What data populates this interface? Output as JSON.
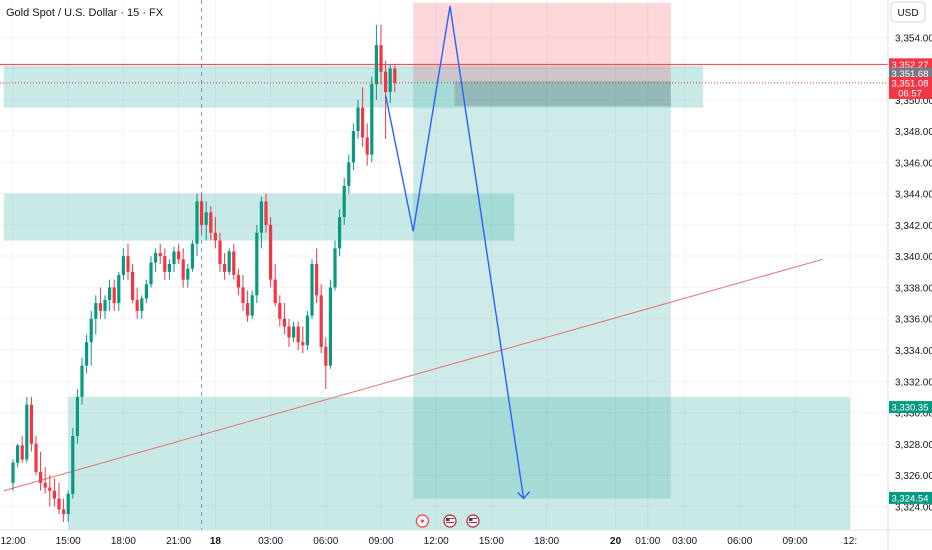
{
  "header": {
    "title": "Gold Spot / U.S. Dollar · 15 · FX"
  },
  "currency_button": "USD",
  "colors": {
    "up": "#089981",
    "down": "#f23645",
    "zone": "#26a69a",
    "target_zone": "#26a69a",
    "stop_zone": "#f23645",
    "path": "#2962ff",
    "trendline": "#e57373",
    "hline": "#f23645",
    "axis_text": "#131722",
    "grid": "#f0f3fa"
  },
  "chart_data": {
    "type": "candlestick",
    "title": "Gold Spot / U.S. Dollar · 15 · FX",
    "y_range": [
      3323.0,
      3356.0
    ],
    "y_ticks": [
      3324,
      3326,
      3328,
      3330,
      3332,
      3334,
      3336,
      3338,
      3340,
      3342,
      3344,
      3346,
      3348,
      3350,
      3352,
      3354
    ],
    "y_tick_labels": [
      "3,324.00",
      "3,326.00",
      "3,328.00",
      "3,330.00",
      "3,332.00",
      "3,334.00",
      "3,336.00",
      "3,338.00",
      "3,340.00",
      "3,342.00",
      "3,344.00",
      "3,346.00",
      "3,348.00",
      "3,350.00",
      "3,352.00",
      "3,354.00"
    ],
    "x_ticks": [
      {
        "label": "12:00",
        "bar": 0
      },
      {
        "label": "15:00",
        "bar": 12
      },
      {
        "label": "18:00",
        "bar": 24
      },
      {
        "label": "21:00",
        "bar": 36
      },
      {
        "label": "18",
        "bar": 44,
        "bold": true
      },
      {
        "label": "03:00",
        "bar": 56
      },
      {
        "label": "06:00",
        "bar": 68
      },
      {
        "label": "09:00",
        "bar": 80
      },
      {
        "label": "12:00",
        "bar": 92
      },
      {
        "label": "15:00",
        "bar": 104
      },
      {
        "label": "18:00",
        "bar": 116
      },
      {
        "label": "20",
        "bar": 131,
        "bold": true
      },
      {
        "label": "01:00",
        "bar": 138
      },
      {
        "label": "03:00",
        "bar": 146
      },
      {
        "label": "06:00",
        "bar": 158
      },
      {
        "label": "09:00",
        "bar": 170
      },
      {
        "label": "12:",
        "bar": 182
      }
    ],
    "candles": [
      [
        3325.5,
        3327.0,
        3325.0,
        3326.8
      ],
      [
        3326.8,
        3328.0,
        3326.5,
        3327.9
      ],
      [
        3327.9,
        3328.5,
        3326.8,
        3327.0
      ],
      [
        3327.0,
        3331.0,
        3326.8,
        3330.5
      ],
      [
        3330.5,
        3331.0,
        3327.5,
        3328.0
      ],
      [
        3328.0,
        3328.5,
        3326.0,
        3326.2
      ],
      [
        3326.2,
        3327.5,
        3325.0,
        3325.5
      ],
      [
        3325.5,
        3326.5,
        3324.8,
        3325.2
      ],
      [
        3325.2,
        3326.0,
        3324.0,
        3325.0
      ],
      [
        3325.0,
        3325.8,
        3324.0,
        3324.5
      ],
      [
        3324.5,
        3325.5,
        3323.5,
        3323.8
      ],
      [
        3323.8,
        3324.5,
        3323.0,
        3323.5
      ],
      [
        3323.5,
        3325.0,
        3323.0,
        3324.8
      ],
      [
        3324.8,
        3329.0,
        3324.5,
        3328.5
      ],
      [
        3328.5,
        3331.5,
        3328.0,
        3331.0
      ],
      [
        3331.0,
        3333.5,
        3330.5,
        3333.0
      ],
      [
        3333.0,
        3335.0,
        3332.5,
        3334.5
      ],
      [
        3334.5,
        3336.5,
        3333.0,
        3336.0
      ],
      [
        3336.0,
        3337.5,
        3335.0,
        3337.0
      ],
      [
        3337.0,
        3338.0,
        3336.0,
        3336.5
      ],
      [
        3336.5,
        3337.5,
        3336.0,
        3337.2
      ],
      [
        3337.2,
        3338.5,
        3336.5,
        3338.0
      ],
      [
        3338.0,
        3338.5,
        3336.5,
        3337.0
      ],
      [
        3337.0,
        3339.0,
        3336.5,
        3338.8
      ],
      [
        3338.8,
        3340.5,
        3338.5,
        3340.0
      ],
      [
        3340.0,
        3340.8,
        3338.5,
        3339.0
      ],
      [
        3339.0,
        3339.5,
        3337.0,
        3337.2
      ],
      [
        3337.2,
        3338.0,
        3336.0,
        3336.5
      ],
      [
        3336.5,
        3337.5,
        3336.0,
        3337.3
      ],
      [
        3337.3,
        3338.5,
        3337.0,
        3338.2
      ],
      [
        3338.2,
        3340.0,
        3338.0,
        3339.6
      ],
      [
        3339.6,
        3340.5,
        3339.0,
        3340.2
      ],
      [
        3340.2,
        3340.8,
        3339.5,
        3340.0
      ],
      [
        3340.0,
        3340.5,
        3338.5,
        3339.0
      ],
      [
        3339.0,
        3339.8,
        3338.5,
        3339.5
      ],
      [
        3339.5,
        3340.6,
        3339.0,
        3340.3
      ],
      [
        3340.3,
        3340.8,
        3339.5,
        3339.8
      ],
      [
        3339.8,
        3340.5,
        3338.0,
        3338.5
      ],
      [
        3338.5,
        3339.5,
        3338.0,
        3339.2
      ],
      [
        3339.2,
        3341.0,
        3339.0,
        3340.8
      ],
      [
        3340.8,
        3344.0,
        3340.0,
        3343.5
      ],
      [
        3343.5,
        3344.0,
        3341.5,
        3342.0
      ],
      [
        3342.0,
        3343.5,
        3341.0,
        3342.8
      ],
      [
        3342.8,
        3343.2,
        3341.0,
        3341.5
      ],
      [
        3341.5,
        3342.5,
        3340.5,
        3341.0
      ],
      [
        3341.0,
        3341.5,
        3339.0,
        3339.5
      ],
      [
        3339.5,
        3340.2,
        3338.5,
        3339.0
      ],
      [
        3339.0,
        3340.5,
        3338.8,
        3340.3
      ],
      [
        3340.3,
        3340.8,
        3338.5,
        3338.8
      ],
      [
        3338.8,
        3339.2,
        3337.5,
        3338.0
      ],
      [
        3338.0,
        3338.8,
        3336.5,
        3337.0
      ],
      [
        3337.0,
        3337.8,
        3335.8,
        3336.2
      ],
      [
        3336.2,
        3337.8,
        3336.0,
        3337.5
      ],
      [
        3337.5,
        3342.0,
        3337.0,
        3341.5
      ],
      [
        3341.5,
        3343.8,
        3340.5,
        3343.5
      ],
      [
        3343.5,
        3344.0,
        3341.5,
        3342.0
      ],
      [
        3342.0,
        3342.5,
        3338.0,
        3338.5
      ],
      [
        3338.5,
        3339.5,
        3336.8,
        3337.0
      ],
      [
        3337.0,
        3337.5,
        3335.5,
        3336.0
      ],
      [
        3336.0,
        3337.0,
        3335.0,
        3335.5
      ],
      [
        3335.5,
        3336.0,
        3334.2,
        3334.8
      ],
      [
        3334.8,
        3335.8,
        3334.5,
        3335.5
      ],
      [
        3335.5,
        3335.8,
        3334.0,
        3334.5
      ],
      [
        3334.5,
        3335.5,
        3333.8,
        3334.3
      ],
      [
        3334.3,
        3336.5,
        3334.0,
        3336.2
      ],
      [
        3336.2,
        3339.8,
        3336.0,
        3339.5
      ],
      [
        3339.5,
        3340.5,
        3337.0,
        3337.5
      ],
      [
        3337.5,
        3338.2,
        3333.8,
        3334.2
      ],
      [
        3334.2,
        3334.8,
        3331.5,
        3333.0
      ],
      [
        3333.0,
        3338.5,
        3332.8,
        3338.0
      ],
      [
        3338.0,
        3341.0,
        3337.8,
        3340.5
      ],
      [
        3340.5,
        3343.0,
        3340.0,
        3342.5
      ],
      [
        3342.5,
        3345.0,
        3342.0,
        3344.5
      ],
      [
        3344.5,
        3346.5,
        3344.0,
        3346.0
      ],
      [
        3346.0,
        3348.5,
        3345.5,
        3348.0
      ],
      [
        3348.0,
        3350.0,
        3347.5,
        3349.5
      ],
      [
        3349.5,
        3350.8,
        3347.0,
        3347.6
      ],
      [
        3347.6,
        3348.5,
        3345.8,
        3346.5
      ],
      [
        3346.5,
        3351.5,
        3346.0,
        3351.0
      ],
      [
        3351.0,
        3354.8,
        3350.0,
        3353.5
      ],
      [
        3353.5,
        3354.8,
        3351.0,
        3351.8
      ],
      [
        3351.8,
        3352.5,
        3347.5,
        3350.5
      ],
      [
        3350.5,
        3352.3,
        3349.8,
        3352.0
      ],
      [
        3352.0,
        3352.2,
        3350.5,
        3351.1
      ]
    ]
  },
  "drawings": {
    "zones": [
      {
        "from_bar": -2,
        "to_bar": 150,
        "top": 3352.2,
        "bottom": 3349.5,
        "kind": "zone",
        "opacity": 0.25
      },
      {
        "from_bar": -2,
        "to_bar": 109,
        "top": 3344.0,
        "bottom": 3341.0,
        "kind": "zone",
        "opacity": 0.25
      },
      {
        "from_bar": 12,
        "to_bar": 182,
        "top": 3331.0,
        "bottom": 3322.5,
        "kind": "zone",
        "opacity": 0.25
      }
    ],
    "position": {
      "from_bar": 87,
      "to_bar": 143,
      "entry": 3351.2,
      "stop": 3356.2,
      "target": 3324.5
    },
    "projection_path": [
      [
        81,
        3350.3
      ],
      [
        87,
        3341.6
      ],
      [
        95,
        3356.0
      ],
      [
        111,
        3324.5
      ]
    ],
    "trendline": {
      "from": [
        -2,
        3325.0
      ],
      "to": [
        176,
        3339.8
      ]
    },
    "vertical_dashed_bar": 41,
    "hline_price": 3352.27,
    "current_price_dotted": 3351.08
  },
  "price_labels": [
    {
      "text": "3,352.27",
      "value": 3352.27,
      "bg": "#f23645"
    },
    {
      "text": "3,351.68",
      "value": 3351.68,
      "bg": "#787b86"
    },
    {
      "text": "3,351.08",
      "value": 3351.08,
      "bg": "#f23645",
      "sub": "06:57"
    },
    {
      "text": "3,330.35",
      "value": 3330.35,
      "bg": "#089981"
    },
    {
      "text": "3,324.54",
      "value": 3324.54,
      "bg": "#089981"
    }
  ],
  "event_icons": [
    {
      "name": "lightning-event-icon",
      "bar": 89,
      "glyph": "⚡"
    },
    {
      "name": "us-flag-event-icon",
      "bar": 95,
      "glyph": "🇺🇸"
    },
    {
      "name": "us-flag-event-icon-2",
      "bar": 100,
      "glyph": "🇺🇸"
    }
  ]
}
